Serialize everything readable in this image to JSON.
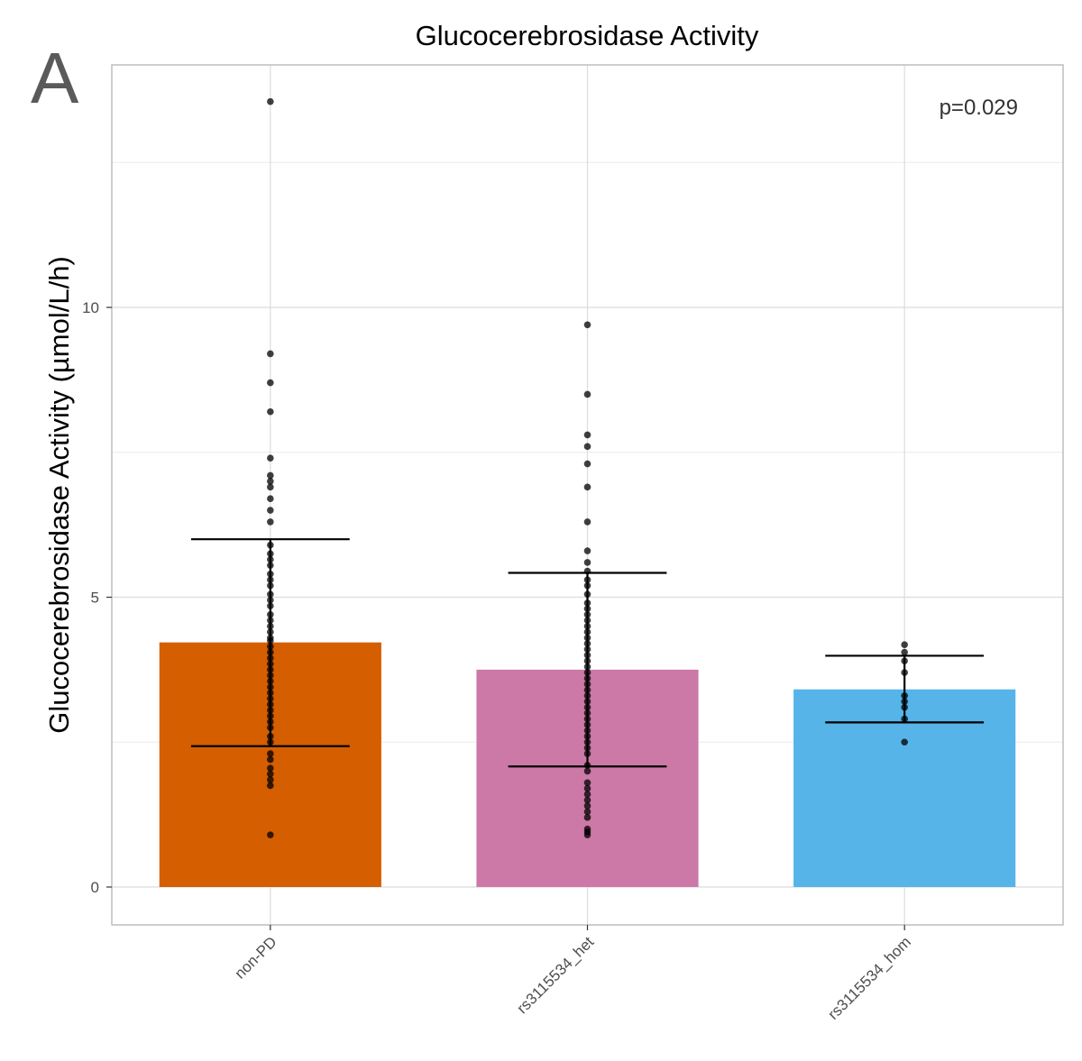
{
  "panel_letter": "A",
  "colors": {
    "non-PD": "#D55E00",
    "rs3115534_het": "#CC79A7",
    "rs3115534_hom": "#56B4E9"
  },
  "chart_data": {
    "type": "bar",
    "title": "Glucocerebrosidase Activity",
    "xlabel": "",
    "ylabel": "Glucocerebrosidase Activity (µmol/L/h)",
    "ylim": [
      -0.65,
      14.2
    ],
    "yticks": [
      0,
      5,
      10
    ],
    "grid": true,
    "annotation": "p=0.029",
    "categories": [
      "non-PD",
      "rs3115534_het",
      "rs3115534_hom"
    ],
    "values": [
      4.22,
      3.75,
      3.41
    ],
    "error_low": [
      2.43,
      2.08,
      2.84
    ],
    "error_high": [
      6.0,
      5.42,
      3.99
    ],
    "points": [
      [
        13.55,
        9.2,
        8.7,
        8.2,
        7.4,
        7.1,
        7.0,
        6.9,
        6.7,
        6.5,
        6.3,
        5.9,
        5.75,
        5.65,
        5.55,
        5.4,
        5.3,
        5.2,
        5.05,
        4.95,
        4.85,
        4.7,
        4.6,
        4.5,
        4.4,
        4.3,
        4.25,
        4.15,
        4.05,
        3.95,
        3.85,
        3.75,
        3.65,
        3.55,
        3.45,
        3.35,
        3.25,
        3.15,
        3.05,
        2.95,
        2.85,
        2.75,
        2.6,
        2.5,
        2.3,
        2.2,
        2.05,
        1.95,
        1.85,
        1.75,
        0.9
      ],
      [
        9.7,
        8.5,
        7.8,
        7.6,
        7.3,
        6.9,
        6.3,
        5.8,
        5.6,
        5.45,
        5.3,
        5.2,
        5.05,
        4.9,
        4.8,
        4.7,
        4.6,
        4.5,
        4.4,
        4.3,
        4.2,
        4.1,
        4.0,
        3.9,
        3.8,
        3.7,
        3.6,
        3.5,
        3.4,
        3.3,
        3.2,
        3.1,
        3.0,
        2.9,
        2.8,
        2.7,
        2.6,
        2.5,
        2.4,
        2.3,
        2.1,
        2.0,
        1.8,
        1.7,
        1.6,
        1.5,
        1.4,
        1.3,
        1.2,
        1.0,
        0.95,
        0.9
      ],
      [
        4.18,
        4.05,
        3.9,
        3.7,
        3.3,
        3.2,
        3.1,
        2.9,
        2.5
      ]
    ]
  }
}
